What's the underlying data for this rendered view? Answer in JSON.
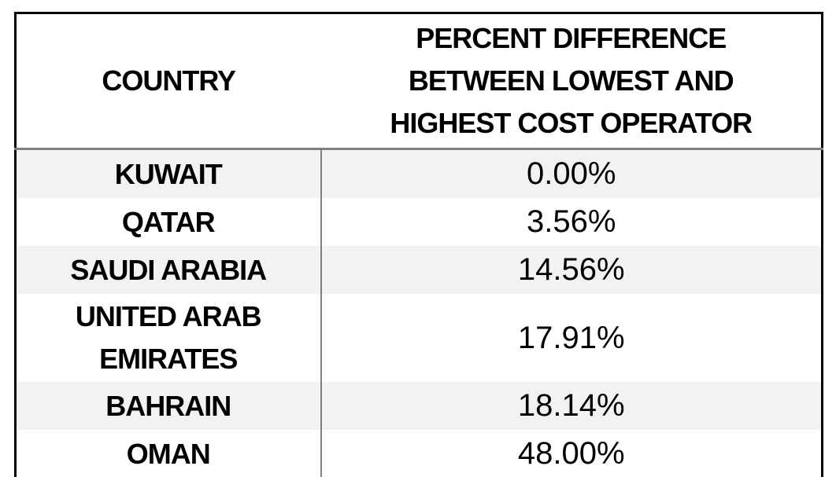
{
  "chart_data": {
    "type": "table",
    "columns": [
      {
        "label": "COUNTRY"
      },
      {
        "label": "PERCENT DIFFERENCE BETWEEN LOWEST AND HIGHEST COST OPERATOR",
        "lines": [
          "PERCENT DIFFERENCE",
          "BETWEEN LOWEST AND",
          "HIGHEST COST OPERATOR"
        ]
      }
    ],
    "rows": [
      {
        "country": "KUWAIT",
        "percent_display": "0.00%",
        "percent_value": 0.0
      },
      {
        "country": "QATAR",
        "percent_display": "3.56%",
        "percent_value": 3.56
      },
      {
        "country": "SAUDI ARABIA",
        "percent_display": "14.56%",
        "percent_value": 14.56
      },
      {
        "country": "UNITED ARAB EMIRATES",
        "percent_display": "17.91%",
        "percent_value": 17.91
      },
      {
        "country": "BAHRAIN",
        "percent_display": "18.14%",
        "percent_value": 18.14
      },
      {
        "country": "OMAN",
        "percent_display": "48.00%",
        "percent_value": 48.0
      }
    ],
    "layout": {
      "zebra_striping": true,
      "striped_row_indexes": [
        0,
        2,
        4
      ]
    }
  },
  "colors": {
    "background": "#ffffff",
    "outer_border": "#000000",
    "inner_divider": "#808080",
    "stripe_row": "#f2f2f2",
    "text": "#000000"
  }
}
